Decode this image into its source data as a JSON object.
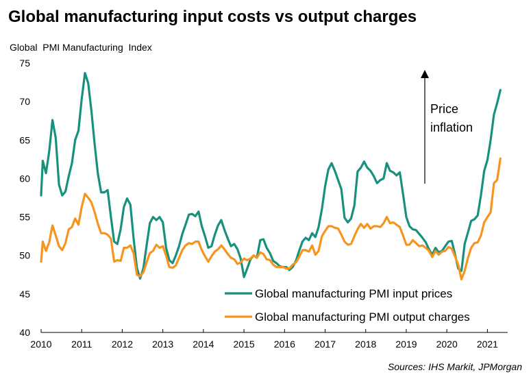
{
  "chart_data": {
    "type": "line",
    "title": "Global manufacturing input costs vs output charges",
    "ylabel": "Global  PMI Manufacturing  Index",
    "xlabel": "",
    "ylim": [
      40,
      75
    ],
    "yticks": [
      40,
      45,
      50,
      55,
      60,
      65,
      70,
      75
    ],
    "xlim": [
      2010,
      2021.5
    ],
    "xticks": [
      "2010",
      "2011",
      "2012",
      "2013",
      "2014",
      "2015",
      "2016",
      "2017",
      "2018",
      "2019",
      "2020",
      "2021"
    ],
    "grid": false,
    "series": [
      {
        "name": "Global manufacturing PMI input prices",
        "color": "#17907e",
        "values": [
          [
            2010.0,
            57.8
          ],
          [
            2010.04,
            62.3
          ],
          [
            2010.12,
            60.7
          ],
          [
            2010.2,
            63.5
          ],
          [
            2010.28,
            67.6
          ],
          [
            2010.36,
            65.3
          ],
          [
            2010.44,
            59.2
          ],
          [
            2010.52,
            57.8
          ],
          [
            2010.6,
            58.3
          ],
          [
            2010.68,
            60.3
          ],
          [
            2010.76,
            62.0
          ],
          [
            2010.84,
            65.0
          ],
          [
            2010.92,
            66.2
          ],
          [
            2011.0,
            70.3
          ],
          [
            2011.08,
            73.7
          ],
          [
            2011.16,
            72.4
          ],
          [
            2011.24,
            68.8
          ],
          [
            2011.32,
            64.4
          ],
          [
            2011.4,
            60.6
          ],
          [
            2011.48,
            58.2
          ],
          [
            2011.56,
            58.2
          ],
          [
            2011.64,
            58.5
          ],
          [
            2011.72,
            55.0
          ],
          [
            2011.8,
            51.8
          ],
          [
            2011.88,
            51.5
          ],
          [
            2011.96,
            53.4
          ],
          [
            2012.04,
            56.3
          ],
          [
            2012.12,
            57.4
          ],
          [
            2012.2,
            56.6
          ],
          [
            2012.28,
            52.2
          ],
          [
            2012.36,
            48.4
          ],
          [
            2012.44,
            47.0
          ],
          [
            2012.52,
            48.3
          ],
          [
            2012.6,
            51.3
          ],
          [
            2012.68,
            54.2
          ],
          [
            2012.76,
            55.0
          ],
          [
            2012.84,
            54.6
          ],
          [
            2012.92,
            55.0
          ],
          [
            2013.0,
            54.3
          ],
          [
            2013.08,
            51.0
          ],
          [
            2013.16,
            49.4
          ],
          [
            2013.24,
            49.0
          ],
          [
            2013.32,
            50.0
          ],
          [
            2013.4,
            51.2
          ],
          [
            2013.48,
            52.8
          ],
          [
            2013.56,
            54.0
          ],
          [
            2013.64,
            55.3
          ],
          [
            2013.72,
            55.4
          ],
          [
            2013.8,
            55.1
          ],
          [
            2013.88,
            55.7
          ],
          [
            2013.96,
            53.8
          ],
          [
            2014.04,
            52.5
          ],
          [
            2014.12,
            51.0
          ],
          [
            2014.2,
            51.2
          ],
          [
            2014.28,
            52.7
          ],
          [
            2014.36,
            53.9
          ],
          [
            2014.44,
            54.6
          ],
          [
            2014.52,
            53.3
          ],
          [
            2014.6,
            52.2
          ],
          [
            2014.68,
            51.2
          ],
          [
            2014.76,
            51.5
          ],
          [
            2014.84,
            50.8
          ],
          [
            2014.92,
            49.6
          ],
          [
            2015.0,
            47.2
          ],
          [
            2015.08,
            48.3
          ],
          [
            2015.16,
            49.5
          ],
          [
            2015.24,
            50.0
          ],
          [
            2015.32,
            49.7
          ],
          [
            2015.4,
            52.0
          ],
          [
            2015.48,
            52.1
          ],
          [
            2015.56,
            51.0
          ],
          [
            2015.64,
            50.3
          ],
          [
            2015.72,
            49.3
          ],
          [
            2015.8,
            49.0
          ],
          [
            2015.88,
            48.6
          ],
          [
            2015.96,
            48.5
          ],
          [
            2016.04,
            48.5
          ],
          [
            2016.12,
            48.1
          ],
          [
            2016.2,
            48.5
          ],
          [
            2016.28,
            49.3
          ],
          [
            2016.36,
            50.6
          ],
          [
            2016.44,
            51.8
          ],
          [
            2016.52,
            52.3
          ],
          [
            2016.6,
            52.0
          ],
          [
            2016.68,
            52.9
          ],
          [
            2016.76,
            52.4
          ],
          [
            2016.84,
            53.7
          ],
          [
            2016.92,
            56.0
          ],
          [
            2017.0,
            59.0
          ],
          [
            2017.08,
            61.2
          ],
          [
            2017.16,
            62.0
          ],
          [
            2017.24,
            61.0
          ],
          [
            2017.32,
            59.8
          ],
          [
            2017.4,
            58.6
          ],
          [
            2017.48,
            54.9
          ],
          [
            2017.56,
            54.3
          ],
          [
            2017.64,
            54.8
          ],
          [
            2017.72,
            56.5
          ],
          [
            2017.8,
            60.9
          ],
          [
            2017.88,
            61.4
          ],
          [
            2017.96,
            62.2
          ],
          [
            2018.04,
            61.4
          ],
          [
            2018.12,
            61.0
          ],
          [
            2018.2,
            60.3
          ],
          [
            2018.28,
            59.4
          ],
          [
            2018.36,
            59.8
          ],
          [
            2018.44,
            60.0
          ],
          [
            2018.52,
            62.0
          ],
          [
            2018.6,
            61.0
          ],
          [
            2018.68,
            60.8
          ],
          [
            2018.76,
            60.4
          ],
          [
            2018.84,
            60.8
          ],
          [
            2018.92,
            58.0
          ],
          [
            2019.0,
            55.0
          ],
          [
            2019.08,
            53.8
          ],
          [
            2019.16,
            53.4
          ],
          [
            2019.24,
            53.3
          ],
          [
            2019.32,
            52.8
          ],
          [
            2019.4,
            52.3
          ],
          [
            2019.48,
            51.7
          ],
          [
            2019.56,
            50.8
          ],
          [
            2019.64,
            50.1
          ],
          [
            2019.72,
            51.0
          ],
          [
            2019.8,
            50.4
          ],
          [
            2019.88,
            50.6
          ],
          [
            2019.96,
            51.2
          ],
          [
            2020.04,
            51.8
          ],
          [
            2020.12,
            51.9
          ],
          [
            2020.2,
            50.2
          ],
          [
            2020.28,
            48.3
          ],
          [
            2020.36,
            48.0
          ],
          [
            2020.44,
            51.5
          ],
          [
            2020.52,
            53.0
          ],
          [
            2020.6,
            54.5
          ],
          [
            2020.68,
            54.7
          ],
          [
            2020.76,
            55.2
          ],
          [
            2020.84,
            57.8
          ],
          [
            2020.92,
            61.0
          ],
          [
            2021.0,
            62.4
          ],
          [
            2021.08,
            65.0
          ],
          [
            2021.16,
            68.3
          ],
          [
            2021.24,
            69.8
          ],
          [
            2021.32,
            71.5
          ]
        ]
      },
      {
        "name": "Global manufacturing PMI output charges",
        "color": "#f7941d",
        "values": [
          [
            2010.0,
            49.2
          ],
          [
            2010.04,
            51.8
          ],
          [
            2010.12,
            50.6
          ],
          [
            2010.2,
            51.7
          ],
          [
            2010.28,
            53.9
          ],
          [
            2010.36,
            52.6
          ],
          [
            2010.44,
            51.2
          ],
          [
            2010.52,
            50.7
          ],
          [
            2010.6,
            51.6
          ],
          [
            2010.68,
            53.4
          ],
          [
            2010.76,
            53.7
          ],
          [
            2010.84,
            54.8
          ],
          [
            2010.92,
            54.0
          ],
          [
            2011.0,
            56.3
          ],
          [
            2011.08,
            58.0
          ],
          [
            2011.16,
            57.5
          ],
          [
            2011.24,
            56.9
          ],
          [
            2011.32,
            55.6
          ],
          [
            2011.4,
            54.1
          ],
          [
            2011.48,
            52.9
          ],
          [
            2011.56,
            52.9
          ],
          [
            2011.64,
            52.7
          ],
          [
            2011.72,
            52.2
          ],
          [
            2011.8,
            49.2
          ],
          [
            2011.88,
            49.4
          ],
          [
            2011.96,
            49.3
          ],
          [
            2012.04,
            51.0
          ],
          [
            2012.12,
            51.0
          ],
          [
            2012.2,
            51.3
          ],
          [
            2012.28,
            50.3
          ],
          [
            2012.36,
            47.5
          ],
          [
            2012.44,
            47.3
          ],
          [
            2012.52,
            47.8
          ],
          [
            2012.6,
            49.1
          ],
          [
            2012.68,
            50.3
          ],
          [
            2012.76,
            50.6
          ],
          [
            2012.84,
            51.4
          ],
          [
            2012.92,
            51.0
          ],
          [
            2013.0,
            51.2
          ],
          [
            2013.08,
            50.0
          ],
          [
            2013.16,
            48.5
          ],
          [
            2013.24,
            48.4
          ],
          [
            2013.32,
            48.7
          ],
          [
            2013.4,
            49.7
          ],
          [
            2013.48,
            50.7
          ],
          [
            2013.56,
            51.3
          ],
          [
            2013.64,
            51.6
          ],
          [
            2013.72,
            51.5
          ],
          [
            2013.8,
            51.8
          ],
          [
            2013.88,
            51.8
          ],
          [
            2013.96,
            50.7
          ],
          [
            2014.04,
            49.9
          ],
          [
            2014.12,
            49.2
          ],
          [
            2014.2,
            49.9
          ],
          [
            2014.28,
            50.5
          ],
          [
            2014.36,
            50.8
          ],
          [
            2014.44,
            51.3
          ],
          [
            2014.52,
            50.8
          ],
          [
            2014.6,
            50.2
          ],
          [
            2014.68,
            49.7
          ],
          [
            2014.76,
            49.5
          ],
          [
            2014.84,
            48.9
          ],
          [
            2014.92,
            49.1
          ],
          [
            2015.0,
            49.6
          ],
          [
            2015.08,
            49.4
          ],
          [
            2015.16,
            49.6
          ],
          [
            2015.24,
            50.0
          ],
          [
            2015.32,
            49.7
          ],
          [
            2015.4,
            50.4
          ],
          [
            2015.48,
            50.2
          ],
          [
            2015.56,
            49.5
          ],
          [
            2015.64,
            49.4
          ],
          [
            2015.72,
            48.8
          ],
          [
            2015.8,
            48.5
          ],
          [
            2015.88,
            48.5
          ],
          [
            2015.96,
            48.5
          ],
          [
            2016.04,
            48.3
          ],
          [
            2016.12,
            48.3
          ],
          [
            2016.2,
            48.8
          ],
          [
            2016.28,
            49.1
          ],
          [
            2016.36,
            49.8
          ],
          [
            2016.44,
            50.7
          ],
          [
            2016.52,
            50.7
          ],
          [
            2016.6,
            50.5
          ],
          [
            2016.68,
            51.3
          ],
          [
            2016.76,
            50.1
          ],
          [
            2016.84,
            50.6
          ],
          [
            2016.92,
            52.5
          ],
          [
            2017.0,
            53.2
          ],
          [
            2017.08,
            53.8
          ],
          [
            2017.16,
            53.8
          ],
          [
            2017.24,
            53.6
          ],
          [
            2017.32,
            53.5
          ],
          [
            2017.4,
            52.7
          ],
          [
            2017.48,
            51.8
          ],
          [
            2017.56,
            51.4
          ],
          [
            2017.64,
            51.5
          ],
          [
            2017.72,
            52.5
          ],
          [
            2017.8,
            53.4
          ],
          [
            2017.88,
            54.1
          ],
          [
            2017.96,
            53.6
          ],
          [
            2018.04,
            54.1
          ],
          [
            2018.12,
            53.5
          ],
          [
            2018.2,
            53.8
          ],
          [
            2018.28,
            53.8
          ],
          [
            2018.36,
            53.7
          ],
          [
            2018.44,
            54.2
          ],
          [
            2018.52,
            55.0
          ],
          [
            2018.6,
            54.2
          ],
          [
            2018.68,
            54.3
          ],
          [
            2018.76,
            54.0
          ],
          [
            2018.84,
            53.7
          ],
          [
            2018.92,
            52.6
          ],
          [
            2019.0,
            51.4
          ],
          [
            2019.08,
            51.4
          ],
          [
            2019.16,
            52.0
          ],
          [
            2019.24,
            51.6
          ],
          [
            2019.32,
            51.2
          ],
          [
            2019.4,
            51.3
          ],
          [
            2019.48,
            51.0
          ],
          [
            2019.56,
            50.6
          ],
          [
            2019.64,
            49.8
          ],
          [
            2019.72,
            50.6
          ],
          [
            2019.8,
            50.1
          ],
          [
            2019.88,
            50.5
          ],
          [
            2019.96,
            50.6
          ],
          [
            2020.04,
            51.1
          ],
          [
            2020.12,
            50.9
          ],
          [
            2020.2,
            49.9
          ],
          [
            2020.28,
            48.8
          ],
          [
            2020.36,
            46.9
          ],
          [
            2020.44,
            48.0
          ],
          [
            2020.52,
            49.7
          ],
          [
            2020.6,
            51.0
          ],
          [
            2020.68,
            51.6
          ],
          [
            2020.76,
            51.7
          ],
          [
            2020.84,
            52.6
          ],
          [
            2020.92,
            54.3
          ],
          [
            2021.0,
            55.0
          ],
          [
            2021.08,
            55.6
          ],
          [
            2021.16,
            59.4
          ],
          [
            2021.24,
            59.8
          ],
          [
            2021.32,
            62.6
          ]
        ]
      }
    ],
    "legend": [
      {
        "label": "Global manufacturing PMI input prices",
        "color": "#17907e"
      },
      {
        "label": "Global manufacturing PMI output charges",
        "color": "#f7941d"
      }
    ],
    "legend_position": "bottom-center",
    "annotation": {
      "line1": "Price",
      "line2": "inflation"
    },
    "source": "Sources: IHS Markit, JPMorgan"
  }
}
